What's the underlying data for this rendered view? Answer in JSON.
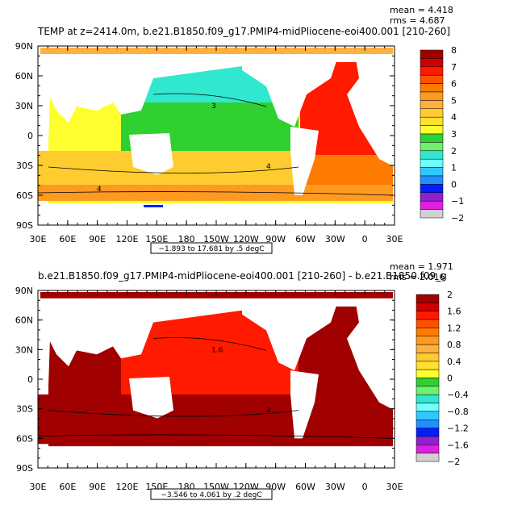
{
  "panels": [
    {
      "title": "TEMP at z=2414.0m, b.e21.B1850.f09_g17.PMIP4-midPliocene-eoi400.001 [210-260]",
      "mean": "mean = 4.418",
      "rms": "rms = 4.687",
      "lat_labels": [
        "90N",
        "60N",
        "30N",
        "0",
        "30S",
        "60S",
        "90S"
      ],
      "lon_labels": [
        "30E",
        "60E",
        "90E",
        "120E",
        "150E",
        "180",
        "150W",
        "120W",
        "90W",
        "60W",
        "30W",
        "0",
        "30E"
      ],
      "range_note": "−1.893 to 17.681 by .5 degC",
      "colorbar_labels": [
        "8",
        "7",
        "6",
        "5",
        "4",
        "3",
        "2",
        "1",
        "0",
        "−1",
        "−2"
      ],
      "contour_labels": [
        "3",
        "4",
        "4"
      ]
    },
    {
      "title": "b.e21.B1850.f09_g17.PMIP4-midPliocene-eoi400.001  [210-260] - b.e21.B1850.f09_g",
      "mean": "mean = 1.971",
      "rms": "rms = 2.016",
      "lat_labels": [
        "90N",
        "60N",
        "30N",
        "0",
        "30S",
        "60S",
        "90S"
      ],
      "lon_labels": [
        "30E",
        "60E",
        "90E",
        "120E",
        "150E",
        "180",
        "150W",
        "120W",
        "90W",
        "60W",
        "30W",
        "0",
        "30E"
      ],
      "range_note": "−3.546 to 4.061 by .2 degC",
      "colorbar_labels": [
        "2",
        "1.6",
        "1.2",
        "0.8",
        "0.4",
        "0",
        "−0.4",
        "−0.8",
        "−1.2",
        "−1.6",
        "−2"
      ],
      "contour_labels": [
        "1.6",
        "2"
      ]
    }
  ],
  "colorbar_colors": [
    "#a00000",
    "#d00000",
    "#ff1a00",
    "#ff5000",
    "#ff7a00",
    "#ff9a20",
    "#ffb040",
    "#ffcc30",
    "#ffe030",
    "#ffff30",
    "#30d030",
    "#70f070",
    "#30e8d0",
    "#70ffff",
    "#30c8ff",
    "#2090ff",
    "#0020ff",
    "#9020d0",
    "#e020e0",
    "#d0d0d0"
  ]
}
